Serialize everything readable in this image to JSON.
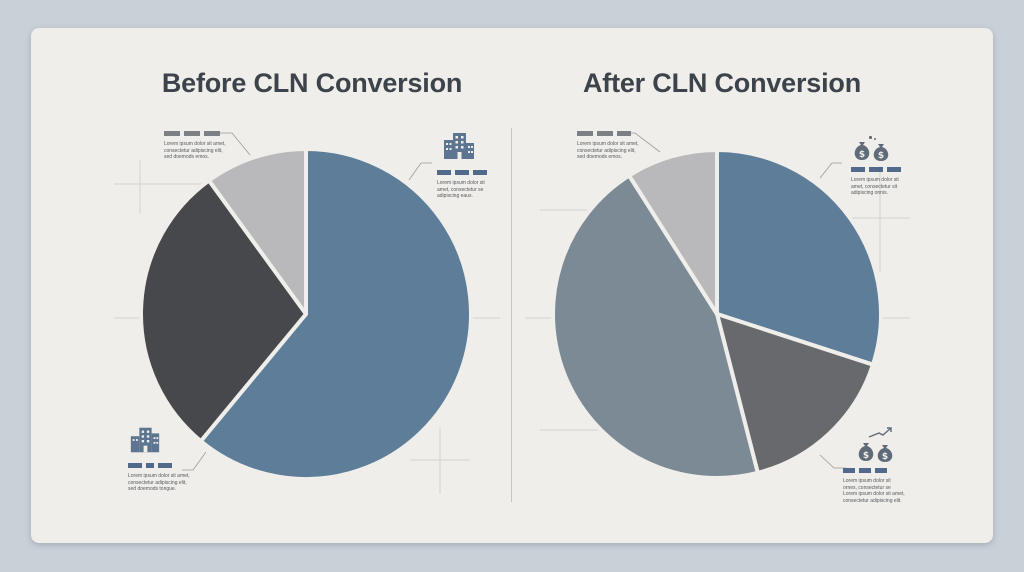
{
  "colors": {
    "slate_blue": "#5d7d98",
    "dark_charcoal": "#47484b",
    "light_gray": "#b9b9bb",
    "medium_gray": "#7b8a94",
    "dark_gray": "#68696c",
    "bars_dark": "#7c7f84",
    "bars_navy": "#51698a"
  },
  "chart_data": [
    {
      "type": "pie",
      "title": "Before CLN Conversion",
      "slices": [
        {
          "color": "#5d7d98",
          "value": 61
        },
        {
          "color": "#47484b",
          "value": 29
        },
        {
          "color": "#b9b9bb",
          "value": 10
        }
      ]
    },
    {
      "type": "pie",
      "title": "After CLN Conversion",
      "slices": [
        {
          "color": "#5d7d98",
          "value": 30
        },
        {
          "color": "#68696c",
          "value": 16
        },
        {
          "color": "#7b8a94",
          "value": 45
        },
        {
          "color": "#b9b9bb",
          "value": 9
        }
      ]
    }
  ],
  "annotations": [
    {
      "text": "Lorem ipsum dolor sit amet,\nconsectetur adipiscing elit,\nsed doemods emos.",
      "icon": ""
    },
    {
      "text": "Lorem ipsum dolor sit\namet, consectetur se\nadipiscing eaus.",
      "icon": "building-icon"
    },
    {
      "text": "Lorem ipsum dolor sit amet,\nconsectetur adipiscing elit,\nsed doemods tongue.",
      "icon": "building-icon"
    },
    {
      "text": "Lorem ipsum dolor sit amet,\nconsectetur adipiscing elit,\nsed doemods emos.",
      "icon": ""
    },
    {
      "text": "Lorem ipsum dolor sit\namet, consectetur sit\nadipiscing onnis.",
      "icon": "money-bags-icon"
    },
    {
      "text": "Lorem ipsum dolor sit\nornes, consectetur se\nLorem ipsum dolor sit amet,\nconsectetur adipiscing elit.",
      "icon": "money-growth-icon"
    }
  ]
}
